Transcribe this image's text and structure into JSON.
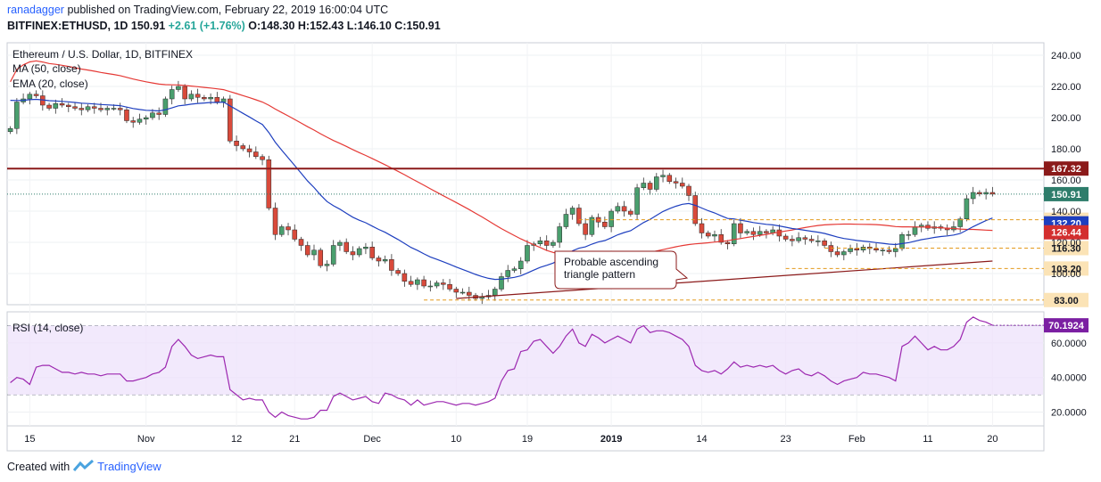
{
  "header": {
    "user": "ranadagger",
    "published": "published on TradingView.com, February 22, 2019 16:00:04 UTC",
    "symbol": "BITFINEX:ETHUSD, 1D",
    "last": "150.91",
    "change": "+2.61 (+1.76%)",
    "ohlc": "O:148.30 H:152.43 L:146.10 C:150.91"
  },
  "footer": {
    "created_with": "Created with",
    "brand": "TradingView"
  },
  "chart_data": [
    {
      "type": "candlestick",
      "title": "Ethereum / U.S. Dollar, 1D, BITFINEX",
      "indicators": [
        "MA (50, close)",
        "EMA (20, close)"
      ],
      "x_tick_labels": [
        "15",
        "Nov",
        "12",
        "21",
        "Dec",
        "10",
        "19",
        "2019",
        "14",
        "23",
        "Feb",
        "11",
        "20"
      ],
      "y_tick_labels": [
        "240.00",
        "220.00",
        "200.00",
        "180.00",
        "160.00",
        "140.00",
        "120.00",
        "100.00"
      ],
      "ylim": [
        80,
        248
      ],
      "closes": [
        193,
        210,
        212,
        215,
        214,
        208,
        206,
        209,
        208,
        207,
        206,
        205,
        207,
        206,
        205,
        206,
        206,
        205,
        198,
        197,
        199,
        200,
        203,
        202,
        212,
        218,
        220,
        212,
        215,
        213,
        212,
        213,
        210,
        212,
        185,
        182,
        180,
        178,
        175,
        173,
        142,
        125,
        130,
        128,
        122,
        118,
        112,
        115,
        105,
        106,
        118,
        120,
        114,
        112,
        116,
        117,
        110,
        108,
        109,
        102,
        100,
        95,
        93,
        96,
        92,
        92,
        94,
        93,
        90,
        88,
        88,
        86,
        84,
        85,
        86,
        90,
        98,
        102,
        103,
        108,
        118,
        119,
        121,
        118,
        120,
        130,
        138,
        142,
        132,
        125,
        136,
        133,
        130,
        140,
        143,
        140,
        138,
        155,
        158,
        154,
        162,
        163,
        159,
        158,
        156,
        150,
        132,
        126,
        124,
        125,
        120,
        119,
        132,
        126,
        127,
        125,
        127,
        126,
        128,
        124,
        122,
        121,
        123,
        122,
        121,
        121,
        118,
        114,
        112,
        114,
        116,
        115,
        117,
        116,
        115,
        115,
        114,
        116,
        125,
        125,
        130,
        131,
        129,
        130,
        129,
        128,
        130,
        135,
        148,
        152,
        151,
        152,
        150.91
      ],
      "levels": [
        {
          "label": "167.32",
          "value": 167.32,
          "color": "#8b1a1a"
        },
        {
          "label": "150.91",
          "value": 150.91,
          "color": "#2e7d6b"
        },
        {
          "label": "134.50",
          "value": 134.5,
          "color": "#e39a1b"
        },
        {
          "label": "132.20",
          "value": 132.2,
          "color": "#1e3fbf"
        },
        {
          "label": "126.44",
          "value": 126.44,
          "color": "#d32f2f"
        },
        {
          "label": "116.30",
          "value": 116.3,
          "color": "#e39a1b"
        },
        {
          "label": "103.20",
          "value": 103.2,
          "color": "#e39a1b"
        },
        {
          "label": "83.00",
          "value": 83.0,
          "color": "#e39a1b"
        }
      ],
      "annotation": "Probable ascending triangle pattern"
    },
    {
      "type": "line",
      "title": "RSI (14, close)",
      "last_label": "70.1924",
      "y_tick_labels": [
        "60.0000",
        "40.0000",
        "20.0000"
      ],
      "ylim": [
        12,
        78
      ],
      "values": [
        37,
        40,
        39,
        36,
        46,
        47,
        47,
        45,
        43,
        43,
        42,
        43,
        42,
        42,
        41,
        42,
        42,
        42,
        38,
        38,
        39,
        40,
        42,
        43,
        46,
        58,
        62,
        58,
        53,
        51,
        52,
        53,
        52,
        52,
        33,
        30,
        27,
        28,
        27,
        27,
        20,
        17,
        20,
        18,
        17,
        16,
        16,
        17,
        21,
        21,
        29,
        31,
        29,
        27,
        28,
        29,
        26,
        25,
        31,
        30,
        28,
        27,
        24,
        27,
        24,
        25,
        26,
        26,
        25,
        24,
        25,
        25,
        24,
        25,
        26,
        28,
        38,
        44,
        45,
        55,
        56,
        61,
        62,
        58,
        54,
        58,
        64,
        68,
        60,
        58,
        65,
        63,
        60,
        62,
        64,
        62,
        60,
        68,
        70,
        66,
        67,
        67,
        66,
        64,
        62,
        58,
        47,
        44,
        43,
        44,
        42,
        45,
        49,
        46,
        47,
        46,
        47,
        46,
        47,
        44,
        42,
        44,
        45,
        42,
        41,
        43,
        41,
        38,
        36,
        38,
        39,
        40,
        43,
        42,
        42,
        41,
        40,
        38,
        58,
        60,
        64,
        60,
        56,
        58,
        56,
        56,
        58,
        62,
        72,
        75,
        73,
        72,
        70.1924
      ]
    }
  ]
}
